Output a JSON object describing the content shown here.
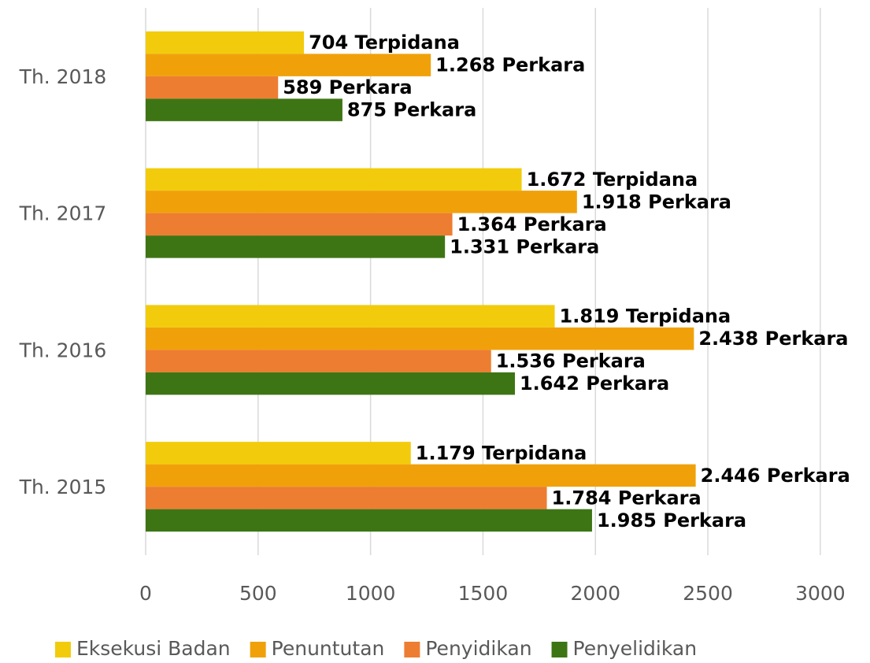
{
  "chart_data": {
    "type": "hbar",
    "categories": [
      "Th. 2018",
      "Th. 2017",
      "Th. 2016",
      "Th. 2015"
    ],
    "series": [
      {
        "name": "Eksekusi Badan",
        "color": "#f2cc0c",
        "values": [
          704,
          1672,
          1819,
          1179
        ],
        "value_labels": [
          "704 Terpidana",
          "1.672 Terpidana",
          "1.819 Terpidana",
          "1.179 Terpidana"
        ]
      },
      {
        "name": "Penuntutan",
        "color": "#f0a10a",
        "values": [
          1268,
          1918,
          2438,
          2446
        ],
        "value_labels": [
          "1.268 Perkara",
          "1.918 Perkara",
          "2.438 Perkara",
          "2.446 Perkara"
        ]
      },
      {
        "name": "Penyidikan",
        "color": "#ed7d31",
        "values": [
          589,
          1364,
          1536,
          1784
        ],
        "value_labels": [
          "589 Perkara",
          "1.364 Perkara",
          "1.536 Perkara",
          "1.784 Perkara"
        ]
      },
      {
        "name": "Penyelidikan",
        "color": "#3e7514",
        "values": [
          875,
          1331,
          1642,
          1985
        ],
        "value_labels": [
          "875 Perkara",
          "1.331 Perkara",
          "1.642 Perkara",
          "1.985 Perkara"
        ]
      }
    ],
    "xlim": [
      0,
      3200
    ],
    "xticks": [
      0,
      500,
      1000,
      1500,
      2000,
      2500,
      3000
    ],
    "grid": true,
    "legend": "bottom"
  }
}
